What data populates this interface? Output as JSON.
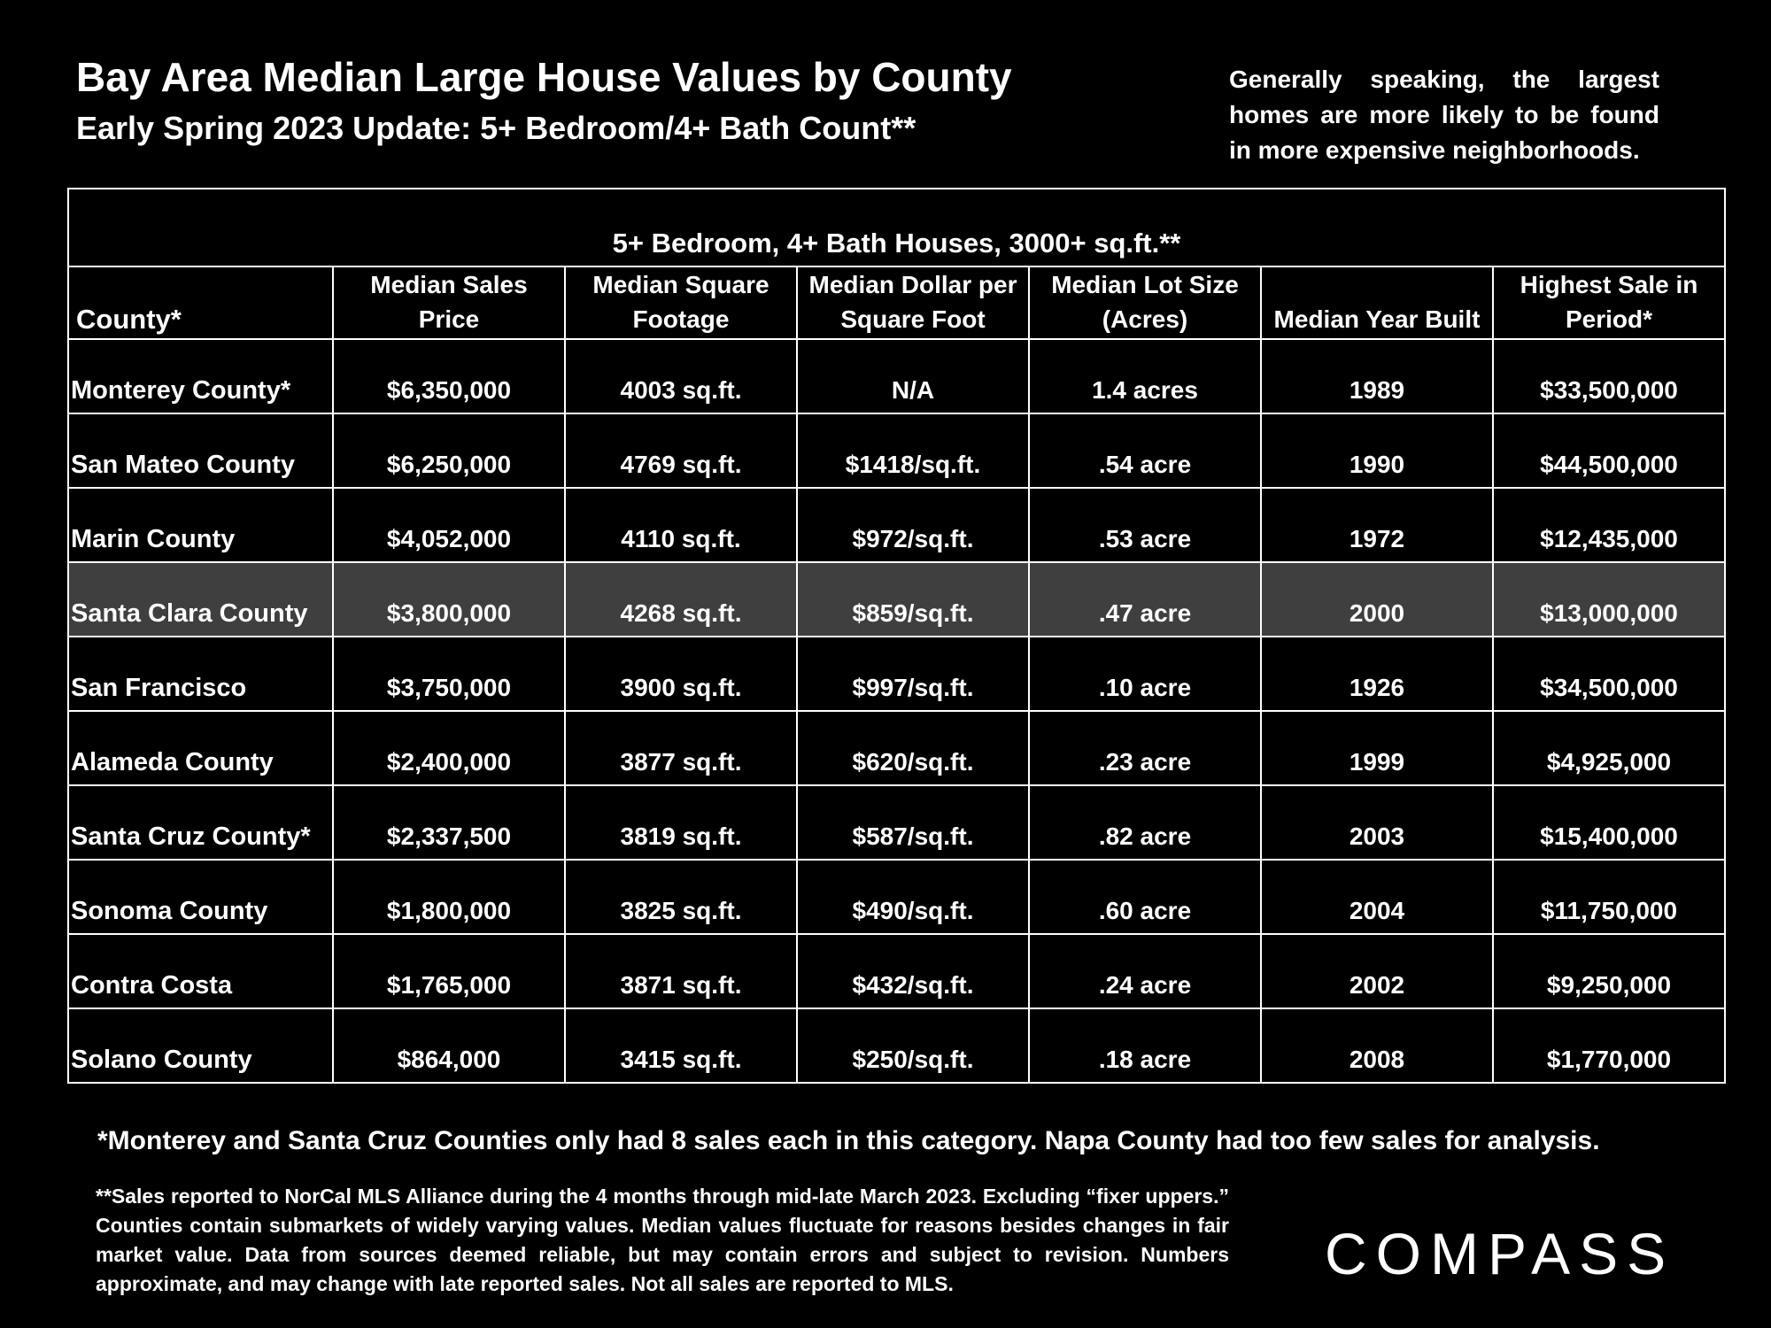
{
  "header": {
    "title": "Bay Area Median Large House Values by County",
    "subtitle": "Early Spring 2023 Update: 5+ Bedroom/4+ Bath Count**",
    "side_note": "Generally speaking, the largest homes are more likely to be found in more expensive neighborhoods."
  },
  "table": {
    "group_header": "5+ Bedroom, 4+ Bath Houses, 3000+ sq.ft.**",
    "columns": [
      "County*",
      "Median Sales Price",
      "Median Square Footage",
      "Median Dollar per Square Foot",
      "Median Lot Size (Acres)",
      "Median Year Built",
      "Highest Sale in Period*"
    ],
    "rows": [
      [
        "Monterey County*",
        "$6,350,000",
        "4003 sq.ft.",
        "N/A",
        "1.4 acres",
        "1989",
        "$33,500,000"
      ],
      [
        "San Mateo County",
        "$6,250,000",
        "4769 sq.ft.",
        "$1418/sq.ft.",
        ".54 acre",
        "1990",
        "$44,500,000"
      ],
      [
        "Marin County",
        "$4,052,000",
        "4110 sq.ft.",
        "$972/sq.ft.",
        ".53 acre",
        "1972",
        "$12,435,000"
      ],
      [
        "Santa Clara County",
        "$3,800,000",
        "4268 sq.ft.",
        "$859/sq.ft.",
        ".47 acre",
        "2000",
        "$13,000,000"
      ],
      [
        "San Francisco",
        "$3,750,000",
        "3900 sq.ft.",
        "$997/sq.ft.",
        ".10 acre",
        "1926",
        "$34,500,000"
      ],
      [
        "Alameda County",
        "$2,400,000",
        "3877 sq.ft.",
        "$620/sq.ft.",
        ".23 acre",
        "1999",
        "$4,925,000"
      ],
      [
        "Santa Cruz County*",
        "$2,337,500",
        "3819 sq.ft.",
        "$587/sq.ft.",
        ".82 acre",
        "2003",
        "$15,400,000"
      ],
      [
        "Sonoma County",
        "$1,800,000",
        "3825 sq.ft.",
        "$490/sq.ft.",
        ".60 acre",
        "2004",
        "$11,750,000"
      ],
      [
        "Contra Costa",
        "$1,765,000",
        "3871 sq.ft.",
        "$432/sq.ft.",
        ".24 acre",
        "2002",
        "$9,250,000"
      ],
      [
        "Solano County",
        "$864,000",
        "3415 sq.ft.",
        "$250/sq.ft.",
        ".18 acre",
        "2008",
        "$1,770,000"
      ]
    ]
  },
  "footnotes": {
    "main": "*Monterey and Santa Cruz Counties only had 8 sales each in this category. Napa County had too few sales for analysis.",
    "details": "**Sales reported to NorCal MLS Alliance during the 4 months through mid-late March 2023. Excluding “fixer uppers.” Counties contain submarkets of widely varying values. Median values fluctuate for reasons besides changes in fair market value. Data from sources deemed reliable, but may contain errors and subject to revision.  Numbers approximate, and may change with late reported sales. Not all sales are reported to MLS."
  },
  "logo": "COMPASS"
}
